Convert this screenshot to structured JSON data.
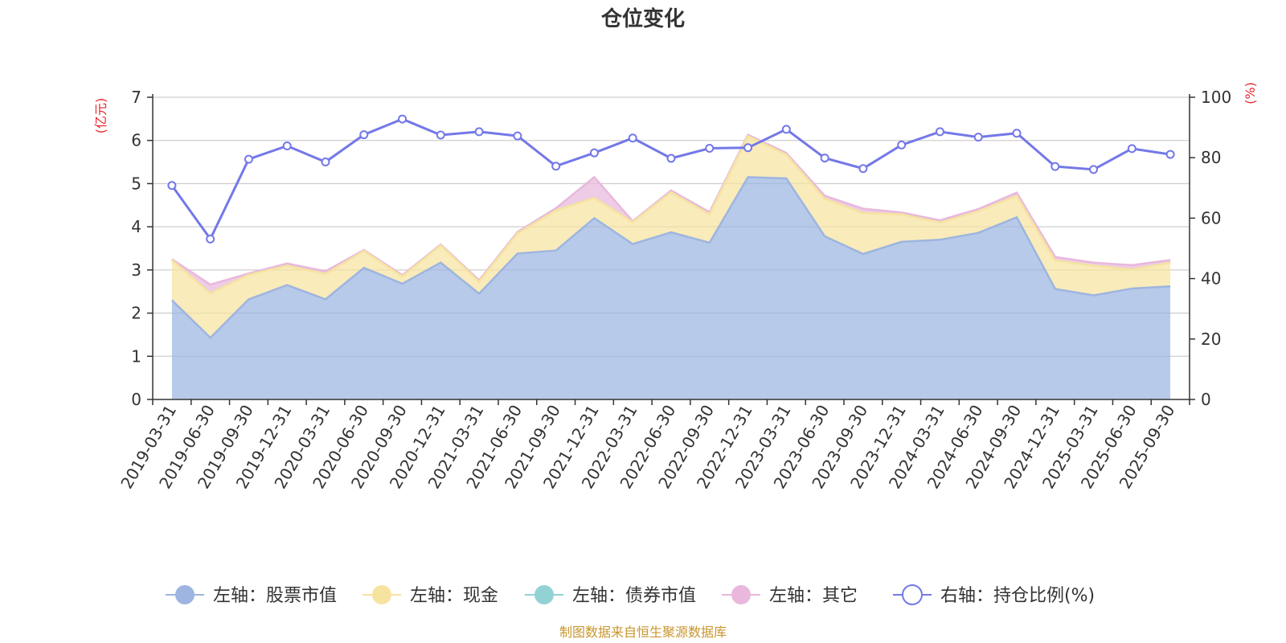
{
  "chart_data": {
    "type": "area",
    "title": "仓位变化",
    "left_unit": "(亿元)",
    "right_unit": "(%)",
    "left_ylim": [
      0,
      7
    ],
    "left_yticks": [
      "0",
      "1",
      "2",
      "3",
      "4",
      "5",
      "6",
      "7"
    ],
    "right_ylim": [
      0,
      100
    ],
    "right_yticks": [
      "0",
      "20",
      "40",
      "60",
      "80",
      "100"
    ],
    "categories": [
      "2019-03-31",
      "2019-06-30",
      "2019-09-30",
      "2019-12-31",
      "2020-03-31",
      "2020-06-30",
      "2020-09-30",
      "2020-12-31",
      "2021-03-31",
      "2021-06-30",
      "2021-09-30",
      "2021-12-31",
      "2022-03-31",
      "2022-06-30",
      "2022-09-30",
      "2022-12-31",
      "2023-03-31",
      "2023-06-30",
      "2023-09-30",
      "2023-12-31",
      "2024-03-31",
      "2024-06-30",
      "2024-09-30",
      "2024-12-31",
      "2025-03-31",
      "2025-06-30",
      "2025-09-30"
    ],
    "series": [
      {
        "name": "左轴：股票市值",
        "axis": "left",
        "color": "#9db5e0",
        "values": [
          2.3,
          1.43,
          2.32,
          2.65,
          2.32,
          3.05,
          2.68,
          3.17,
          2.45,
          3.38,
          3.45,
          4.2,
          3.6,
          3.87,
          3.63,
          5.15,
          5.12,
          3.78,
          3.37,
          3.65,
          3.7,
          3.86,
          4.22,
          2.56,
          2.41,
          2.57,
          2.62
        ]
      },
      {
        "name": "左轴：现金",
        "axis": "left",
        "color": "#f7e3a0",
        "values": [
          0.93,
          1.03,
          0.57,
          0.45,
          0.59,
          0.39,
          0.17,
          0.4,
          0.28,
          0.47,
          0.93,
          0.47,
          0.51,
          0.93,
          0.66,
          0.95,
          0.55,
          0.87,
          0.95,
          0.64,
          0.4,
          0.5,
          0.5,
          0.66,
          0.69,
          0.44,
          0.55
        ]
      },
      {
        "name": "左轴：债券市值",
        "axis": "left",
        "color": "#93d2d4",
        "values": [
          0,
          0,
          0,
          0,
          0,
          0,
          0,
          0,
          0,
          0,
          0,
          0,
          0,
          0,
          0,
          0,
          0,
          0,
          0,
          0,
          0,
          0,
          0,
          0,
          0,
          0,
          0
        ]
      },
      {
        "name": "左轴：其它",
        "axis": "left",
        "color": "#e9b8dc",
        "values": [
          0.02,
          0.2,
          0.03,
          0.05,
          0.06,
          0.02,
          0.03,
          0.02,
          0.03,
          0.03,
          0.05,
          0.48,
          0.02,
          0.04,
          0.05,
          0.03,
          0.04,
          0.07,
          0.1,
          0.04,
          0.05,
          0.05,
          0.07,
          0.08,
          0.07,
          0.1,
          0.06
        ]
      },
      {
        "name": "右轴：持仓比例(%)",
        "axis": "right",
        "color": "#7378e8",
        "values": [
          70.8,
          53.1,
          79.5,
          83.9,
          78.6,
          87.6,
          92.8,
          87.5,
          88.6,
          87.2,
          77.2,
          81.6,
          86.5,
          79.8,
          83.1,
          83.3,
          89.4,
          79.9,
          76.4,
          84.2,
          88.6,
          86.8,
          88.1,
          77.1,
          76.1,
          83.0,
          81.1
        ]
      }
    ]
  },
  "source_note": "制图数据来自恒生聚源数据库"
}
